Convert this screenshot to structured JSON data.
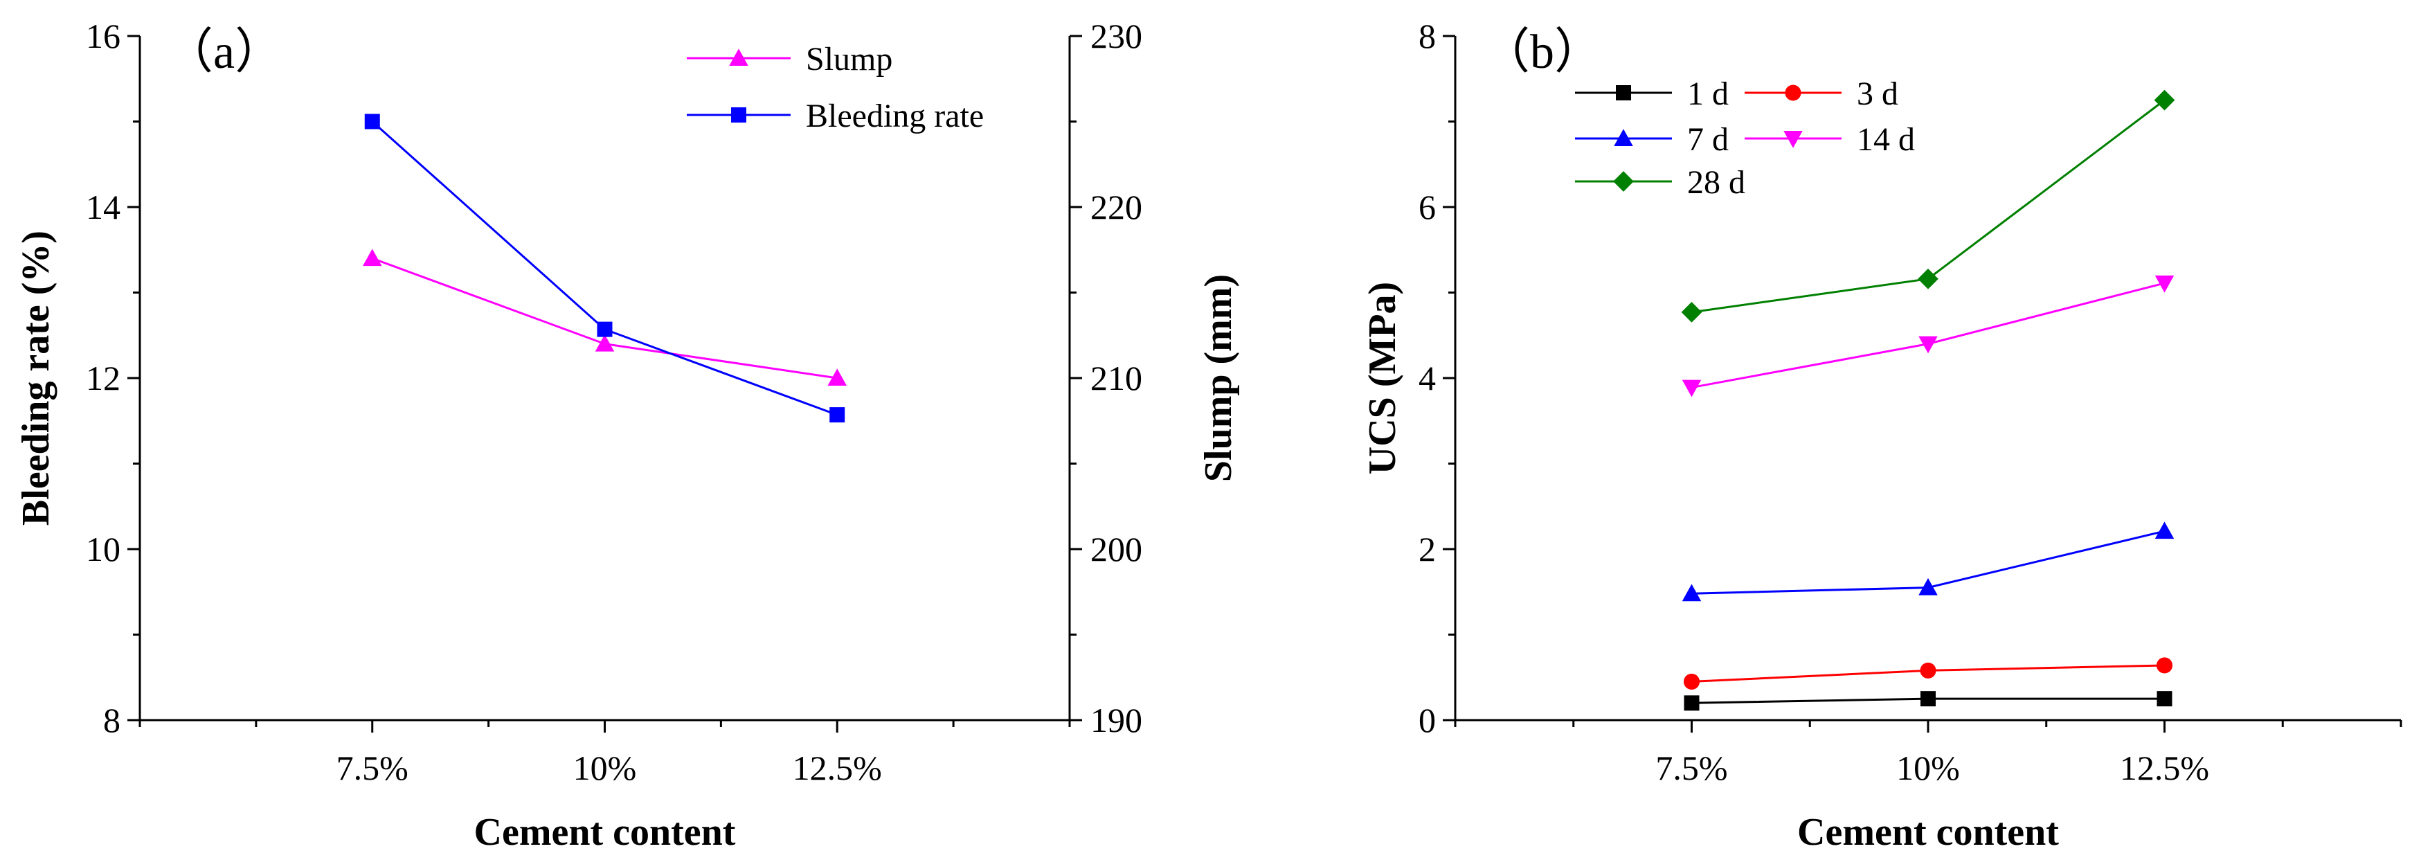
{
  "chart_data": [
    {
      "panel_label": "（a）",
      "type": "line",
      "categories": [
        "7.5%",
        "10%",
        "12.5%"
      ],
      "xlabel": "Cement content",
      "ylabel": "Bleeding rate (%)",
      "ylim": [
        8,
        16
      ],
      "yticks": [
        "8",
        "10",
        "12",
        "14",
        "16"
      ],
      "y2label": "Slump (mm)",
      "y2lim": [
        190,
        230
      ],
      "y2ticks": [
        "190",
        "200",
        "210",
        "220",
        "230"
      ],
      "legend_position": "top-right",
      "series": [
        {
          "name": "Slump",
          "axis": "right",
          "marker": "triangle-up",
          "color": "#FF00FF",
          "values": [
            217,
            212,
            210
          ]
        },
        {
          "name": "Bleeding rate",
          "axis": "left",
          "marker": "square",
          "color": "#0000FF",
          "values": [
            15.0,
            12.57,
            11.57
          ]
        }
      ]
    },
    {
      "panel_label": "（b）",
      "type": "line",
      "categories": [
        "7.5%",
        "10%",
        "12.5%"
      ],
      "xlabel": "Cement content",
      "ylabel": "UCS (MPa)",
      "ylim": [
        0,
        8
      ],
      "yticks": [
        "0",
        "2",
        "4",
        "6",
        "8"
      ],
      "legend_position": "top-left",
      "series": [
        {
          "name": "1 d",
          "marker": "square",
          "color": "#000000",
          "values": [
            0.2,
            0.25,
            0.25
          ]
        },
        {
          "name": "3 d",
          "marker": "circle",
          "color": "#FF0000",
          "values": [
            0.45,
            0.58,
            0.64
          ]
        },
        {
          "name": "7 d",
          "marker": "triangle-up",
          "color": "#0000FF",
          "values": [
            1.48,
            1.55,
            2.21
          ]
        },
        {
          "name": "14 d",
          "marker": "triangle-down",
          "color": "#FF00FF",
          "values": [
            3.89,
            4.4,
            5.11
          ]
        },
        {
          "name": "28 d",
          "marker": "diamond",
          "color": "#008000",
          "values": [
            4.77,
            5.16,
            7.25
          ]
        }
      ]
    }
  ]
}
